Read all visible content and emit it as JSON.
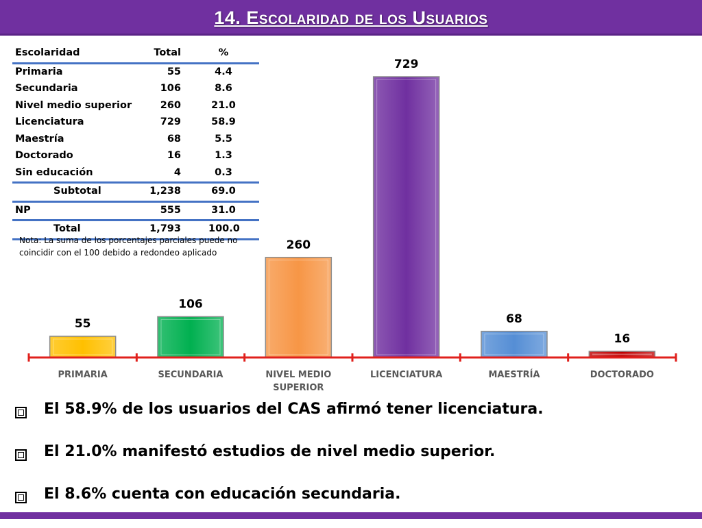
{
  "header": {
    "title": "14. Escolaridad de los Usuarios"
  },
  "colors": {
    "accent": "#7030a0",
    "table_rule": "#4472c4",
    "axis": "#e0201c"
  },
  "table": {
    "headers": [
      "Escolaridad",
      "Total",
      "%"
    ],
    "rows": [
      {
        "label": "Primaria",
        "total": "55",
        "pct": "4.4"
      },
      {
        "label": "Secundaria",
        "total": "106",
        "pct": "8.6"
      },
      {
        "label": "Nivel medio superior",
        "total": "260",
        "pct": "21.0"
      },
      {
        "label": "Licenciatura",
        "total": "729",
        "pct": "58.9"
      },
      {
        "label": "Maestría",
        "total": "68",
        "pct": "5.5"
      },
      {
        "label": "Doctorado",
        "total": "16",
        "pct": "1.3"
      },
      {
        "label": "Sin educación",
        "total": "4",
        "pct": "0.3"
      }
    ],
    "subtotal": {
      "label": "Subtotal",
      "total": "1,238",
      "pct": "69.0"
    },
    "np": {
      "label": "NP",
      "total": "555",
      "pct": "31.0"
    },
    "total": {
      "label": "Total",
      "total": "1,793",
      "pct": "100.0"
    },
    "note_line1": "Nota: La suma de los porcentajes parciales puede no",
    "note_line2": "coincidir con el 100 debido a redondeo aplicado"
  },
  "chart_data": {
    "type": "bar",
    "categories": [
      "PRIMARIA",
      "SECUNDARIA",
      "NIVEL MEDIO SUPERIOR",
      "LICENCIATURA",
      "MAESTRÍA",
      "DOCTORADO"
    ],
    "category_lines": [
      [
        "PRIMARIA"
      ],
      [
        "SECUNDARIA"
      ],
      [
        "NIVEL MEDIO",
        "SUPERIOR"
      ],
      [
        "LICENCIATURA"
      ],
      [
        "MAESTRÍA"
      ],
      [
        "DOCTORADO"
      ]
    ],
    "values": [
      55,
      106,
      260,
      729,
      68,
      16
    ],
    "colors": [
      "#ffc000",
      "#00b050",
      "#f79646",
      "#7030a0",
      "#558ed5",
      "#c00000"
    ],
    "ylim": [
      0,
      729
    ],
    "grid": false,
    "legend": "none"
  },
  "bullets": [
    "El 58.9% de los usuarios del CAS afirmó tener licenciatura.",
    "El 21.0% manifestó estudios de nivel medio superior.",
    "El 8.6% cuenta con educación secundaria."
  ]
}
